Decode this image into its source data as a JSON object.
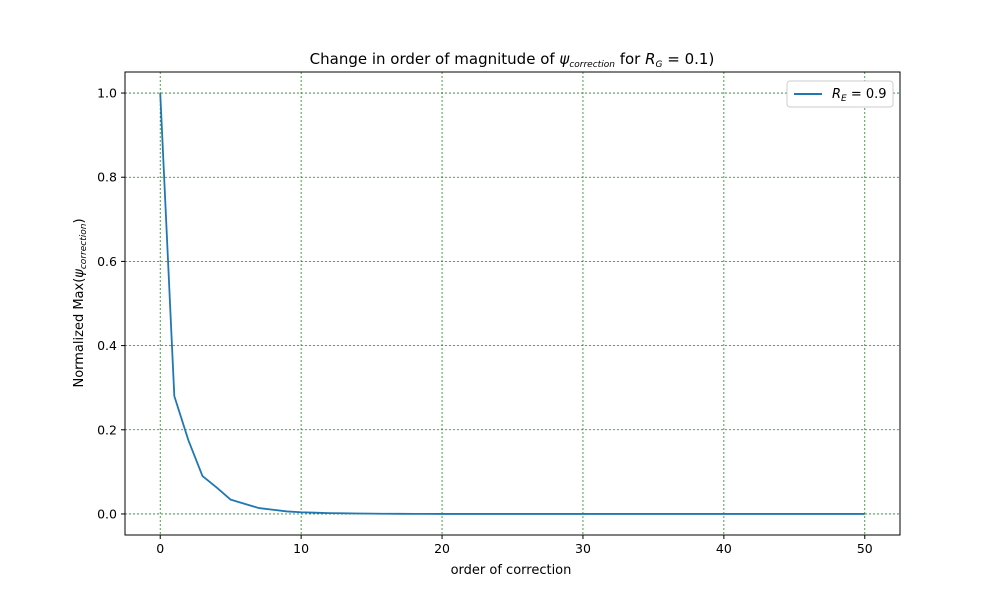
{
  "chart_data": {
    "type": "line",
    "title": {
      "prefix": "Change in order of magnitude of ",
      "psi": "ψ",
      "psi_sub": "correction",
      "middle": " for ",
      "r": "R",
      "r_sub": "G",
      "suffix": " = 0.1)"
    },
    "xlabel": "order of correction",
    "ylabel": {
      "prefix": "Normalized Max(",
      "psi": "ψ",
      "psi_sub": "correction",
      "suffix": ")"
    },
    "xlim": [
      -2.5,
      52.5
    ],
    "ylim": [
      -0.05,
      1.05
    ],
    "xticks": [
      0,
      10,
      20,
      30,
      40,
      50
    ],
    "yticks": [
      0.0,
      0.2,
      0.4,
      0.6,
      0.8,
      1.0
    ],
    "xtick_labels": [
      "0",
      "10",
      "20",
      "30",
      "40",
      "50"
    ],
    "ytick_labels": [
      "0.0",
      "0.2",
      "0.4",
      "0.6",
      "0.8",
      "1.0"
    ],
    "grid": true,
    "grid_color": "#1a8a1a",
    "legend_position": "upper right",
    "series": [
      {
        "name": {
          "r": "R",
          "r_sub": "E",
          "value": " = 0.9"
        },
        "color": "#1f77b4",
        "x": [
          0,
          1,
          2,
          3,
          4,
          5,
          6,
          7,
          8,
          9,
          10,
          11,
          12,
          13,
          14,
          15,
          16,
          17,
          18,
          19,
          20,
          21,
          22,
          23,
          24,
          25,
          26,
          27,
          28,
          29,
          30,
          31,
          32,
          33,
          34,
          35,
          36,
          37,
          38,
          39,
          40,
          41,
          42,
          43,
          44,
          45,
          46,
          47,
          48,
          49,
          50
        ],
        "y": [
          1.0,
          0.28,
          0.175,
          0.09,
          0.063,
          0.034,
          0.024,
          0.014,
          0.01,
          0.006,
          0.004,
          0.003,
          0.002,
          0.0015,
          0.001,
          0.0007,
          0.0005,
          0.0003,
          0.0002,
          0.0001,
          0,
          0,
          0,
          0,
          0,
          0,
          0,
          0,
          0,
          0,
          0,
          0,
          0,
          0,
          0,
          0,
          0,
          0,
          0,
          0,
          0,
          0,
          0,
          0,
          0,
          0,
          0,
          0,
          0,
          0,
          0
        ]
      }
    ]
  }
}
